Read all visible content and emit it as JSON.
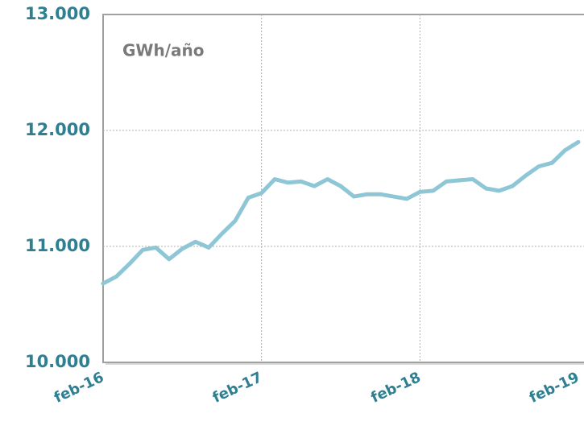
{
  "chart_data": {
    "type": "line",
    "annotation": "GWh/año",
    "categories": [
      "feb-16",
      null,
      null,
      null,
      null,
      null,
      null,
      null,
      null,
      null,
      null,
      null,
      "feb-17",
      null,
      null,
      null,
      null,
      null,
      null,
      null,
      null,
      null,
      null,
      null,
      "feb-18",
      null,
      null,
      null,
      null,
      null,
      null,
      null,
      null,
      null,
      null,
      null,
      "feb-19"
    ],
    "series": [
      {
        "name": null,
        "color": "#8ec6d6",
        "values": [
          10680,
          10740,
          10850,
          10970,
          10990,
          10890,
          10980,
          11040,
          10990,
          11110,
          11220,
          11420,
          11460,
          11580,
          11550,
          11560,
          11520,
          11580,
          11520,
          11430,
          11450,
          11450,
          11430,
          11410,
          11470,
          11480,
          11560,
          11570,
          11580,
          11500,
          11480,
          11520,
          11610,
          11690,
          11720,
          11830,
          11900
        ]
      }
    ],
    "ylim": [
      10000,
      13000
    ],
    "yticks": [
      {
        "value": 10000,
        "label": "10.000"
      },
      {
        "value": 11000,
        "label": "11.000"
      },
      {
        "value": 12000,
        "label": "12.000"
      },
      {
        "value": 13000,
        "label": "13.000"
      }
    ],
    "grid": true
  }
}
